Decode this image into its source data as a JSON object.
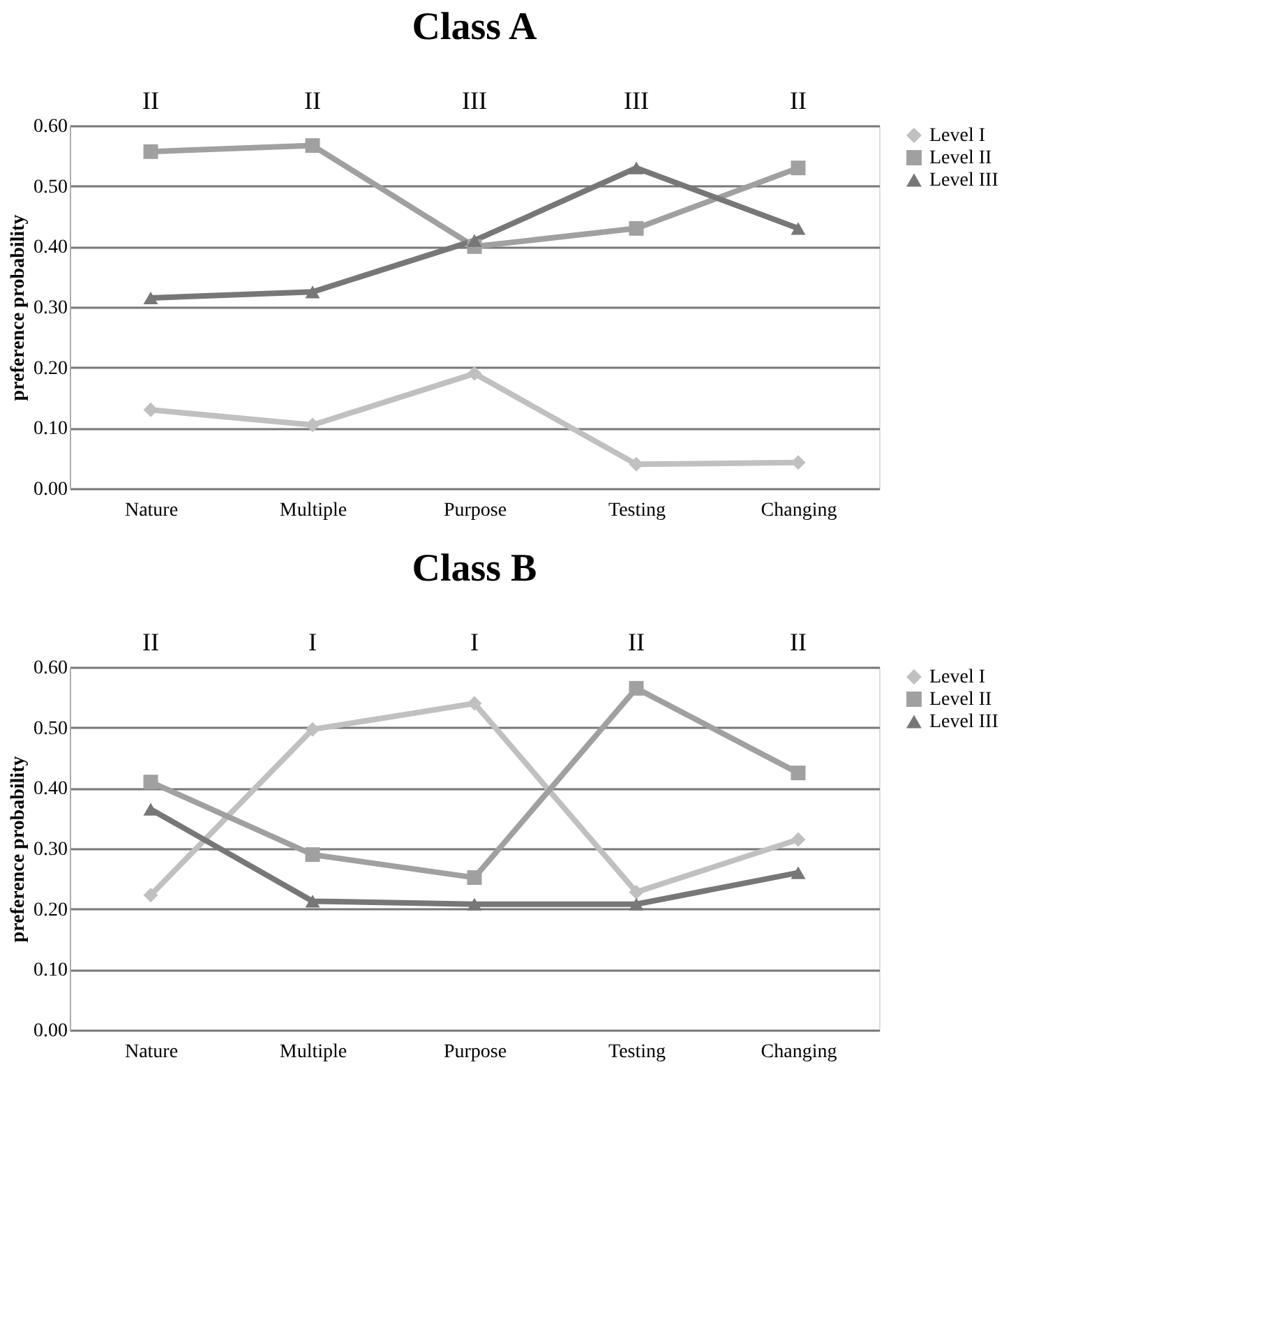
{
  "chart_data": [
    {
      "type": "line",
      "title": "Class A",
      "ylabel": "preference probability",
      "categories": [
        "Nature",
        "Multiple",
        "Purpose",
        "Testing",
        "Changing"
      ],
      "series": [
        {
          "name": "Level I",
          "color": "#c0c0c0",
          "marker": "diamond",
          "values": [
            0.13,
            0.105,
            0.19,
            0.04,
            0.043
          ]
        },
        {
          "name": "Level II",
          "color": "#a0a0a0",
          "marker": "square",
          "values": [
            0.557,
            0.567,
            0.4,
            0.43,
            0.53
          ]
        },
        {
          "name": "Level III",
          "color": "#777777",
          "marker": "triangle",
          "values": [
            0.315,
            0.325,
            0.41,
            0.53,
            0.43
          ]
        }
      ],
      "ylim": [
        0,
        0.6
      ],
      "yticks": [
        {
          "value": 0,
          "label": "0.00"
        },
        {
          "value": 0.1,
          "label": "0.10"
        },
        {
          "value": 0.2,
          "label": "0.20"
        },
        {
          "value": 0.3,
          "label": "0.30"
        },
        {
          "value": 0.4,
          "label": "0.40"
        },
        {
          "value": 0.5,
          "label": "0.50"
        },
        {
          "value": 0.6,
          "label": "0.60"
        }
      ],
      "grid": "y",
      "legend": "right",
      "annotations": [
        "II",
        "II",
        "III",
        "III",
        "II"
      ]
    },
    {
      "type": "line",
      "title": "Class B",
      "ylabel": "preference probability",
      "categories": [
        "Nature",
        "Multiple",
        "Purpose",
        "Testing",
        "Changing"
      ],
      "series": [
        {
          "name": "Level I",
          "color": "#c0c0c0",
          "marker": "diamond",
          "values": [
            0.223,
            0.497,
            0.54,
            0.228,
            0.315
          ]
        },
        {
          "name": "Level II",
          "color": "#a0a0a0",
          "marker": "square",
          "values": [
            0.41,
            0.29,
            0.252,
            0.565,
            0.425
          ]
        },
        {
          "name": "Level III",
          "color": "#777777",
          "marker": "triangle",
          "values": [
            0.365,
            0.213,
            0.208,
            0.208,
            0.26
          ]
        }
      ],
      "ylim": [
        0,
        0.6
      ],
      "yticks": [
        {
          "value": 0,
          "label": "0.00"
        },
        {
          "value": 0.1,
          "label": "0.10"
        },
        {
          "value": 0.2,
          "label": "0.20"
        },
        {
          "value": 0.3,
          "label": "0.30"
        },
        {
          "value": 0.4,
          "label": "0.40"
        },
        {
          "value": 0.5,
          "label": "0.50"
        },
        {
          "value": 0.6,
          "label": "0.60"
        }
      ],
      "grid": "y",
      "legend": "right",
      "annotations": [
        "II",
        "I",
        "I",
        "II",
        "II"
      ]
    }
  ]
}
